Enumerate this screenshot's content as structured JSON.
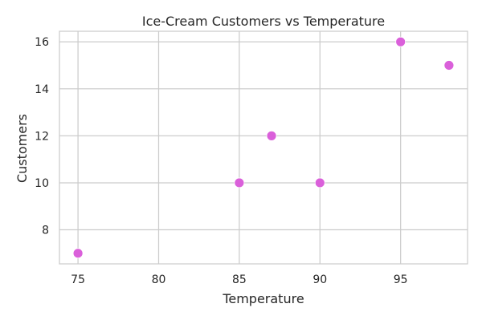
{
  "chart_data": {
    "type": "scatter",
    "title": "Ice-Cream Customers vs Temperature",
    "xlabel": "Temperature",
    "ylabel": "Customers",
    "x": [
      75,
      85,
      87,
      90,
      95,
      98
    ],
    "y": [
      7,
      10,
      12,
      10,
      16,
      15
    ],
    "xlim": [
      73.85,
      99.15
    ],
    "ylim": [
      6.55,
      16.45
    ],
    "xticks": [
      75,
      80,
      85,
      90,
      95
    ],
    "yticks": [
      8,
      10,
      12,
      14,
      16
    ],
    "grid": true,
    "marker_color": "#DA60DA",
    "grid_color": "#CCCCCC",
    "text_color": "#262626"
  }
}
